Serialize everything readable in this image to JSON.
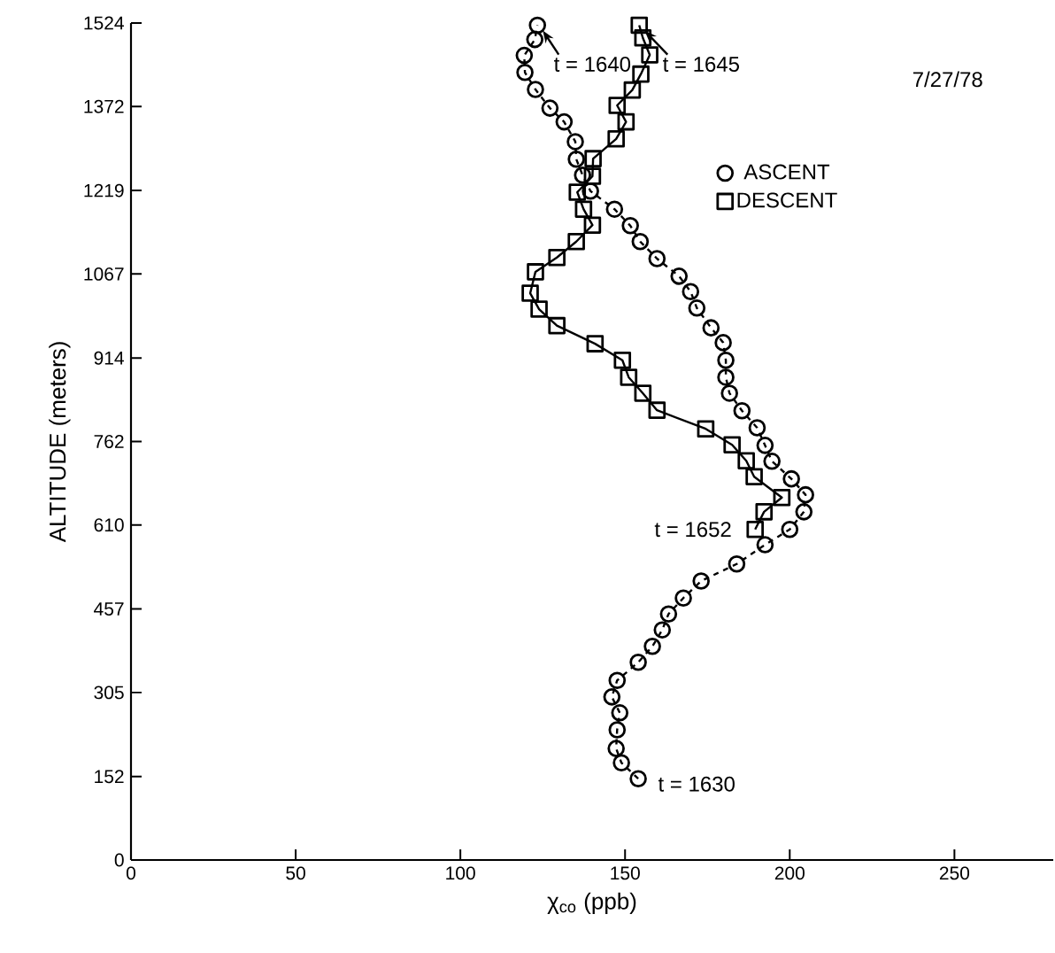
{
  "chart_data": {
    "type": "line",
    "xlabel": "χ$_{co}$ (ppb)",
    "ylabel": "ALTITUDE (meters)",
    "xlim": [
      0,
      280
    ],
    "xticks": [
      0,
      50,
      100,
      150,
      200,
      250
    ],
    "ylim": [
      0,
      1524
    ],
    "yticks": [
      0,
      152,
      305,
      457,
      610,
      762,
      914,
      1067,
      1219,
      1372,
      1524
    ],
    "grid": false,
    "legend": "top right",
    "series": [
      {
        "name": "ASCENT",
        "color": "#000000",
        "marker": "circle",
        "line_style": "dashed",
        "x": [
          154.0,
          148.9,
          147.3,
          147.6,
          148.4,
          146.0,
          147.6,
          154.0,
          158.3,
          161.3,
          163.2,
          167.7,
          173.1,
          183.9,
          192.5,
          200.0,
          204.3,
          204.8,
          200.5,
          194.6,
          192.5,
          190.1,
          185.5,
          181.7,
          180.6,
          180.6,
          179.8,
          176.1,
          171.8,
          169.9,
          166.4,
          159.7,
          154.6,
          151.6,
          146.8,
          139.5,
          137.1,
          135.2,
          134.9,
          131.5,
          127.2,
          122.8,
          119.6,
          119.4,
          122.6,
          123.4
        ],
        "values": [
          148,
          177,
          203,
          237,
          268,
          297,
          327,
          360,
          389,
          419,
          448,
          477,
          508,
          539,
          574,
          602,
          634,
          665,
          694,
          726,
          755,
          787,
          818,
          850,
          879,
          910,
          942,
          969,
          1005,
          1035,
          1063,
          1095,
          1126,
          1155,
          1185,
          1218,
          1247,
          1276,
          1308,
          1344,
          1369,
          1403,
          1434,
          1465,
          1494,
          1520
        ]
      },
      {
        "name": "DESCENT",
        "color": "#000000",
        "marker": "square",
        "line_style": "solid",
        "x": [
          154.3,
          155.4,
          157.5,
          154.8,
          152.2,
          147.6,
          150.3,
          147.3,
          140.3,
          140.1,
          135.5,
          137.4,
          140.1,
          135.2,
          129.3,
          122.8,
          121.2,
          123.9,
          129.3,
          140.9,
          149.2,
          151.1,
          155.4,
          159.7,
          174.5,
          182.5,
          186.8,
          189.2,
          197.6,
          192.2,
          189.5
        ],
        "values": [
          1520,
          1497,
          1466,
          1431,
          1402,
          1374,
          1344,
          1313,
          1277,
          1245,
          1216,
          1185,
          1156,
          1126,
          1097,
          1071,
          1032,
          1003,
          973,
          940,
          910,
          879,
          850,
          819,
          785,
          756,
          727,
          698,
          660,
          634,
          602
        ]
      }
    ],
    "annotations": [
      {
        "text": "t = 1640",
        "x": 123.4,
        "y": 1520
      },
      {
        "text": "t = 1645",
        "x": 154.3,
        "y": 1520
      },
      {
        "text": "t = 1652",
        "x": 189.5,
        "y": 602
      },
      {
        "text": "t = 1630",
        "x": 154.0,
        "y": 148
      },
      "7/27/78"
    ]
  }
}
